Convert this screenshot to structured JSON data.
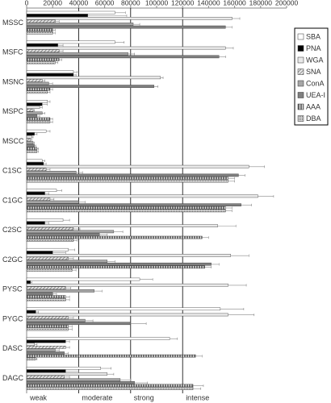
{
  "chart_data": {
    "type": "bar",
    "orientation": "horizontal",
    "categories": [
      "MSSC",
      "MSFC",
      "MSNC",
      "MSPC",
      "MSCC",
      "C1SC",
      "C1GC",
      "C2SC",
      "C2GC",
      "PYSC",
      "PYGC",
      "DASC",
      "DAGC"
    ],
    "xlim": [
      0,
      200000
    ],
    "xticks": [
      0,
      20000,
      40000,
      60000,
      80000,
      100000,
      120000,
      140000,
      160000,
      180000,
      200000
    ],
    "threshold_lines": [
      40000,
      80000,
      120000
    ],
    "annotations": [
      "weak",
      "moderate",
      "strong",
      "intense"
    ],
    "legend": "top-right",
    "series": [
      {
        "name": "SBA",
        "color": "#ffffff",
        "values": [
          68000,
          68000,
          36000,
          16000,
          15000,
          12000,
          23000,
          28000,
          32000,
          87000,
          149000,
          110000,
          57000
        ],
        "errors": [
          8000,
          7000,
          3000,
          2000,
          3000,
          2000,
          4000,
          5000,
          5000,
          10000,
          18000,
          6000,
          8000
        ]
      },
      {
        "name": "PNA",
        "color": "#000000",
        "values": [
          47000,
          24000,
          36000,
          12000,
          6000,
          13000,
          14000,
          14000,
          20000,
          3000,
          7000,
          30000,
          30000
        ],
        "errors": [
          30000,
          4000,
          2000,
          4000,
          2000,
          2000,
          3000,
          3000,
          10000,
          1000,
          2000,
          3000,
          10000
        ]
      },
      {
        "name": "WGA",
        "color": "#e8e8e8",
        "values": [
          158000,
          153000,
          103000,
          10000,
          4000,
          171000,
          178000,
          147000,
          157000,
          155000,
          155000,
          6000,
          62000
        ],
        "errors": [
          6000,
          6000,
          2000,
          2000,
          1000,
          12000,
          12000,
          14000,
          14000,
          14000,
          20000,
          2000,
          5000
        ]
      },
      {
        "name": "SNA",
        "color": "#b0b0b0",
        "pattern": "hatch",
        "values": [
          22000,
          25000,
          12000,
          5000,
          3000,
          15000,
          18000,
          36000,
          32000,
          30000,
          32000,
          30000,
          29000
        ],
        "errors": [
          3000,
          3000,
          2000,
          1000,
          1000,
          3000,
          3000,
          5000,
          4000,
          4000,
          4000,
          3000,
          4000
        ]
      },
      {
        "name": "ConA",
        "color": "#a6a6a6",
        "values": [
          82000,
          78000,
          17000,
          12000,
          5000,
          38000,
          40000,
          67000,
          62000,
          52000,
          45000,
          22000,
          72000
        ],
        "errors": [
          5000,
          5000,
          3000,
          2000,
          1000,
          5000,
          5000,
          7000,
          6000,
          6000,
          6000,
          3000,
          8000
        ]
      },
      {
        "name": "UEA-I",
        "color": "#7f7f7f",
        "values": [
          153000,
          148000,
          98000,
          8000,
          6000,
          163000,
          165000,
          56000,
          142000,
          20000,
          80000,
          29000,
          83000
        ],
        "errors": [
          5000,
          5000,
          3000,
          2000,
          1000,
          5000,
          8000,
          6000,
          6000,
          3000,
          12000,
          3000,
          10000
        ]
      },
      {
        "name": "AAA",
        "color": "#8c8c8c",
        "pattern": "stripes",
        "values": [
          20000,
          25000,
          18000,
          18000,
          8000,
          155000,
          153000,
          135000,
          137000,
          30000,
          32000,
          130000,
          128000
        ],
        "errors": [
          2000,
          2000,
          2000,
          2000,
          1000,
          5000,
          5000,
          5000,
          5000,
          3000,
          3000,
          5000,
          8000
        ]
      },
      {
        "name": "DBA",
        "color": "#bfbfbf",
        "pattern": "dots",
        "values": [
          20000,
          22000,
          16000,
          18000,
          8000,
          155000,
          153000,
          36000,
          35000,
          30000,
          32000,
          7000,
          128000
        ],
        "errors": [
          2000,
          2000,
          2000,
          2000,
          1000,
          5000,
          5000,
          3000,
          3000,
          3000,
          3000,
          1000,
          6000
        ]
      }
    ]
  }
}
